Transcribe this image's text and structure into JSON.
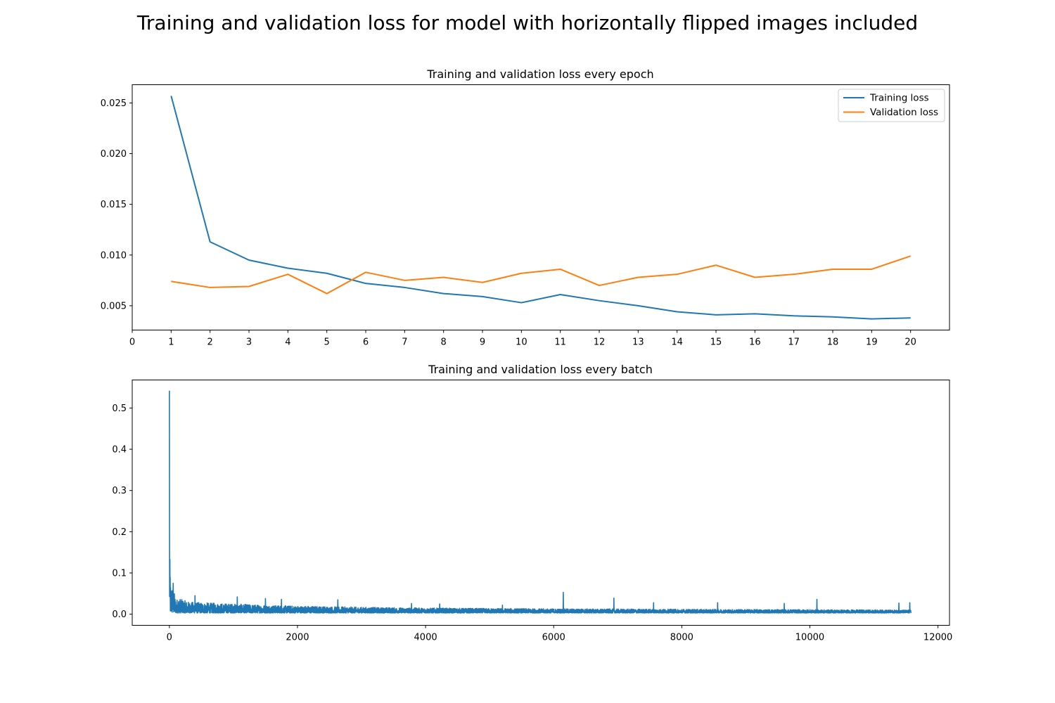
{
  "figure": {
    "title": "Training and validation loss for model with horizontally flipped images included"
  },
  "colors": {
    "training": "#1f77b4",
    "validation": "#ff7f0e"
  },
  "chart_data": [
    {
      "type": "line",
      "title": "Training and validation loss every epoch",
      "xlabel": "",
      "ylabel": "",
      "xlim": [
        0,
        21
      ],
      "ylim": [
        0.0026,
        0.0268
      ],
      "x_ticks": [
        "0",
        "1",
        "2",
        "3",
        "4",
        "5",
        "6",
        "7",
        "8",
        "9",
        "10",
        "11",
        "12",
        "13",
        "14",
        "15",
        "16",
        "17",
        "18",
        "19",
        "20"
      ],
      "y_ticks": [
        "0.005",
        "0.010",
        "0.015",
        "0.020",
        "0.025"
      ],
      "grid": false,
      "legend_position": "top-right",
      "x": [
        1,
        2,
        3,
        4,
        5,
        6,
        7,
        8,
        9,
        10,
        11,
        12,
        13,
        14,
        15,
        16,
        17,
        18,
        19,
        20
      ],
      "series": [
        {
          "name": "Training loss",
          "color": "#1f77b4",
          "values": [
            0.0257,
            0.0113,
            0.0095,
            0.0087,
            0.0082,
            0.0072,
            0.0068,
            0.0062,
            0.0059,
            0.0053,
            0.0061,
            0.0055,
            0.005,
            0.0044,
            0.0041,
            0.0042,
            0.004,
            0.0039,
            0.0037,
            0.0038
          ]
        },
        {
          "name": "Validation loss",
          "color": "#ff7f0e",
          "values": [
            0.0074,
            0.0068,
            0.0069,
            0.0081,
            0.0062,
            0.0083,
            0.0075,
            0.0078,
            0.0073,
            0.0082,
            0.0086,
            0.007,
            0.0078,
            0.0081,
            0.009,
            0.0078,
            0.0081,
            0.0086,
            0.0086,
            0.0099
          ]
        }
      ]
    },
    {
      "type": "line",
      "title": "Training and validation loss every batch",
      "xlabel": "",
      "ylabel": "",
      "xlim": [
        -580,
        12180
      ],
      "ylim": [
        -0.027,
        0.568
      ],
      "x_ticks": [
        "0",
        "2000",
        "4000",
        "6000",
        "8000",
        "10000",
        "12000"
      ],
      "y_ticks": [
        "0.0",
        "0.1",
        "0.2",
        "0.3",
        "0.4",
        "0.5"
      ],
      "grid": false,
      "series": [
        {
          "color": "#1f77b4",
          "x_range": [
            0,
            11580
          ],
          "profile": [
            [
              0,
              0.542
            ],
            [
              5,
              0.2
            ],
            [
              10,
              0.09
            ],
            [
              20,
              0.075
            ],
            [
              40,
              0.07
            ],
            [
              60,
              0.065
            ],
            [
              100,
              0.035
            ],
            [
              150,
              0.04
            ],
            [
              200,
              0.035
            ],
            [
              300,
              0.03
            ],
            [
              500,
              0.028
            ],
            [
              1000,
              0.025
            ],
            [
              1500,
              0.022
            ],
            [
              2000,
              0.02
            ],
            [
              3000,
              0.017
            ],
            [
              4000,
              0.015
            ],
            [
              6000,
              0.013
            ],
            [
              8000,
              0.012
            ],
            [
              10000,
              0.011
            ],
            [
              11580,
              0.01
            ]
          ],
          "spikes": [
            [
              0,
              0.542
            ],
            [
              12,
              0.09
            ],
            [
              60,
              0.075
            ],
            [
              400,
              0.045
            ],
            [
              1060,
              0.042
            ],
            [
              1500,
              0.038
            ],
            [
              1750,
              0.036
            ],
            [
              2630,
              0.035
            ],
            [
              3780,
              0.026
            ],
            [
              4220,
              0.025
            ],
            [
              5200,
              0.022
            ],
            [
              6150,
              0.053
            ],
            [
              6940,
              0.039
            ],
            [
              7560,
              0.028
            ],
            [
              8560,
              0.028
            ],
            [
              9600,
              0.026
            ],
            [
              10110,
              0.036
            ],
            [
              11390,
              0.027
            ],
            [
              11560,
              0.028
            ]
          ]
        }
      ]
    }
  ]
}
